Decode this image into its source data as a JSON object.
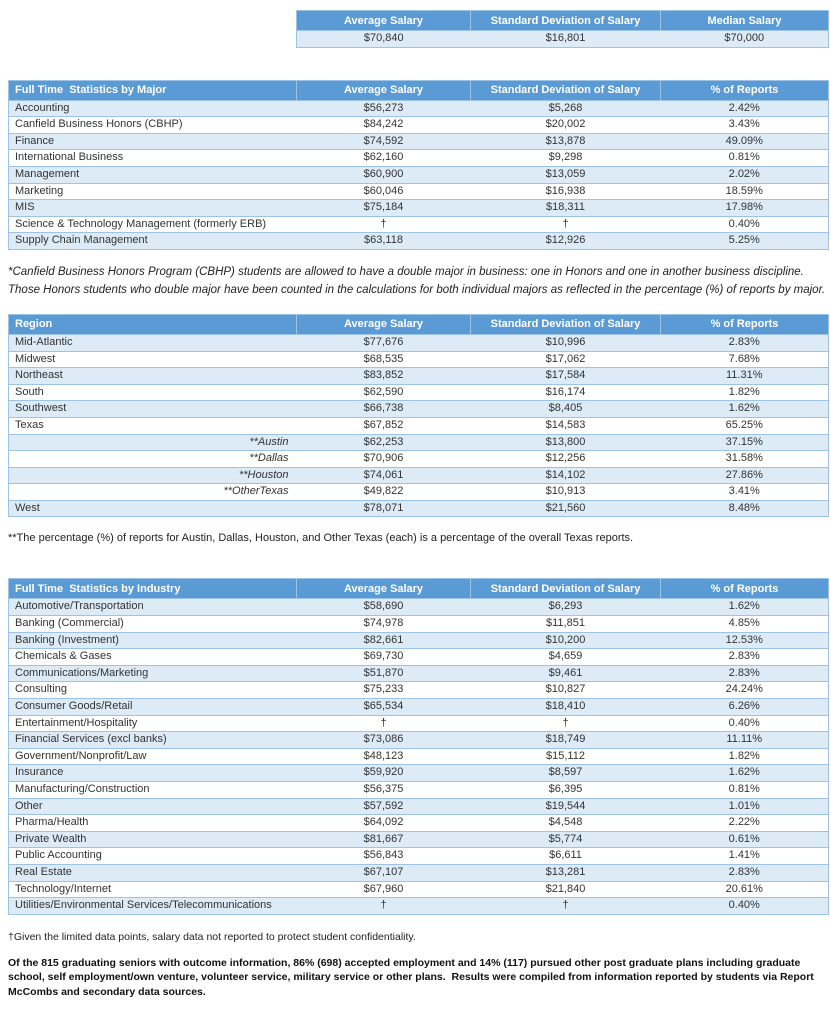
{
  "colors": {
    "header_bg": "#5B9BD5",
    "stripe_row_bg": "#DDEBF7",
    "border": "#9DC3E6",
    "header_text": "#FFFFFF"
  },
  "summary_table": {
    "headers": [
      "Average Salary",
      "Standard Deviation of Salary",
      "Median Salary"
    ],
    "values": [
      "$70,840",
      "$16,801",
      "$70,000"
    ]
  },
  "major_table": {
    "title": "Full Time  Statistics by Major",
    "headers": [
      "Average Salary",
      "Standard Deviation of Salary",
      "% of Reports"
    ],
    "rows": [
      {
        "label": "Accounting",
        "avg": "$56,273",
        "std": "$5,268",
        "pct": "2.42%"
      },
      {
        "label": "Canfield Business Honors (CBHP)",
        "avg": "$84,242",
        "std": "$20,002",
        "pct": "3.43%"
      },
      {
        "label": "Finance",
        "avg": "$74,592",
        "std": "$13,878",
        "pct": "49.09%"
      },
      {
        "label": "International Business",
        "avg": "$62,160",
        "std": "$9,298",
        "pct": "0.81%"
      },
      {
        "label": "Management",
        "avg": "$60,900",
        "std": "$13,059",
        "pct": "2.02%"
      },
      {
        "label": "Marketing",
        "avg": "$60,046",
        "std": "$16,938",
        "pct": "18.59%"
      },
      {
        "label": "MIS",
        "avg": "$75,184",
        "std": "$18,311",
        "pct": "17.98%"
      },
      {
        "label": "Science & Technology Management (formerly ERB)",
        "avg": "†",
        "std": "†",
        "pct": "0.40%"
      },
      {
        "label": "Supply Chain Management",
        "avg": "$63,118",
        "std": "$12,926",
        "pct": "5.25%"
      }
    ]
  },
  "major_note": "*Canfield Business Honors Program (CBHP) students are allowed to have a double major in business: one in Honors and one in another business discipline. Those Honors students who double major have been counted in the calculations for both individual majors as reflected in the percentage (%) of reports by major.",
  "region_table": {
    "title": "Region",
    "headers": [
      "Average Salary",
      "Standard Deviation of Salary",
      "% of Reports"
    ],
    "rows": [
      {
        "label": "Mid-Atlantic",
        "avg": "$77,676",
        "std": "$10,996",
        "pct": "2.83%"
      },
      {
        "label": "Midwest",
        "avg": "$68,535",
        "std": "$17,062",
        "pct": "7.68%"
      },
      {
        "label": "Northeast",
        "avg": "$83,852",
        "std": "$17,584",
        "pct": "11.31%"
      },
      {
        "label": "South",
        "avg": "$62,590",
        "std": "$16,174",
        "pct": "1.82%"
      },
      {
        "label": "Southwest",
        "avg": "$66,738",
        "std": "$8,405",
        "pct": "1.62%"
      },
      {
        "label": "Texas",
        "avg": "$67,852",
        "std": "$14,583",
        "pct": "65.25%"
      },
      {
        "label": "**Austin",
        "avg": "$62,253",
        "std": "$13,800",
        "pct": "37.15%",
        "indent": true
      },
      {
        "label": "**Dallas",
        "avg": "$70,906",
        "std": "$12,256",
        "pct": "31.58%",
        "indent": true
      },
      {
        "label": "**Houston",
        "avg": "$74,061",
        "std": "$14,102",
        "pct": "27.86%",
        "indent": true
      },
      {
        "label": "**OtherTexas",
        "avg": "$49,822",
        "std": "$10,913",
        "pct": "3.41%",
        "indent": true
      },
      {
        "label": "West",
        "avg": "$78,071",
        "std": "$21,560",
        "pct": "8.48%"
      }
    ]
  },
  "region_note": "**The percentage (%) of reports for Austin, Dallas, Houston, and Other Texas (each) is a percentage of the overall Texas reports.",
  "industry_table": {
    "title": "Full Time  Statistics by Industry",
    "headers": [
      "Average Salary",
      "Standard Deviation of Salary",
      "% of Reports"
    ],
    "rows": [
      {
        "label": "Automotive/Transportation",
        "avg": "$58,690",
        "std": "$6,293",
        "pct": "1.62%"
      },
      {
        "label": "Banking (Commercial)",
        "avg": "$74,978",
        "std": "$11,851",
        "pct": "4.85%"
      },
      {
        "label": "Banking (Investment)",
        "avg": "$82,661",
        "std": "$10,200",
        "pct": "12.53%"
      },
      {
        "label": "Chemicals & Gases",
        "avg": "$69,730",
        "std": "$4,659",
        "pct": "2.83%"
      },
      {
        "label": "Communications/Marketing",
        "avg": "$51,870",
        "std": "$9,461",
        "pct": "2.83%"
      },
      {
        "label": "Consulting",
        "avg": "$75,233",
        "std": "$10,827",
        "pct": "24.24%"
      },
      {
        "label": "Consumer Goods/Retail",
        "avg": "$65,534",
        "std": "$18,410",
        "pct": "6.26%"
      },
      {
        "label": "Entertainment/Hospitality",
        "avg": "†",
        "std": "†",
        "pct": "0.40%"
      },
      {
        "label": "Financial Services (excl banks)",
        "avg": "$73,086",
        "std": "$18,749",
        "pct": "11.11%"
      },
      {
        "label": "Government/Nonprofit/Law",
        "avg": "$48,123",
        "std": "$15,112",
        "pct": "1.82%"
      },
      {
        "label": "Insurance",
        "avg": "$59,920",
        "std": "$8,597",
        "pct": "1.62%"
      },
      {
        "label": "Manufacturing/Construction",
        "avg": "$56,375",
        "std": "$6,395",
        "pct": "0.81%"
      },
      {
        "label": "Other",
        "avg": "$57,592",
        "std": "$19,544",
        "pct": "1.01%"
      },
      {
        "label": "Pharma/Health",
        "avg": "$64,092",
        "std": "$4,548",
        "pct": "2.22%"
      },
      {
        "label": "Private Wealth",
        "avg": "$81,667",
        "std": "$5,774",
        "pct": "0.61%"
      },
      {
        "label": "Public Accounting",
        "avg": "$56,843",
        "std": "$6,611",
        "pct": "1.41%"
      },
      {
        "label": "Real Estate",
        "avg": "$67,107",
        "std": "$13,281",
        "pct": "2.83%"
      },
      {
        "label": "Technology/Internet",
        "avg": "$67,960",
        "std": "$21,840",
        "pct": "20.61%"
      },
      {
        "label": "Utilities/Environmental Services/Telecommunications",
        "avg": "†",
        "std": "†",
        "pct": "0.40%"
      }
    ]
  },
  "dagger_note": "†Given the limited data points, salary data not reported to protect student confidentiality.",
  "closing_paragraph": "Of the 815 graduating seniors with outcome information, 86% (698) accepted employment and 14% (117) pursued other post graduate plans including graduate school, self employment/own venture, volunteer service, military service or other plans.  Results were compiled from information reported by students via Report McCombs and secondary data sources."
}
